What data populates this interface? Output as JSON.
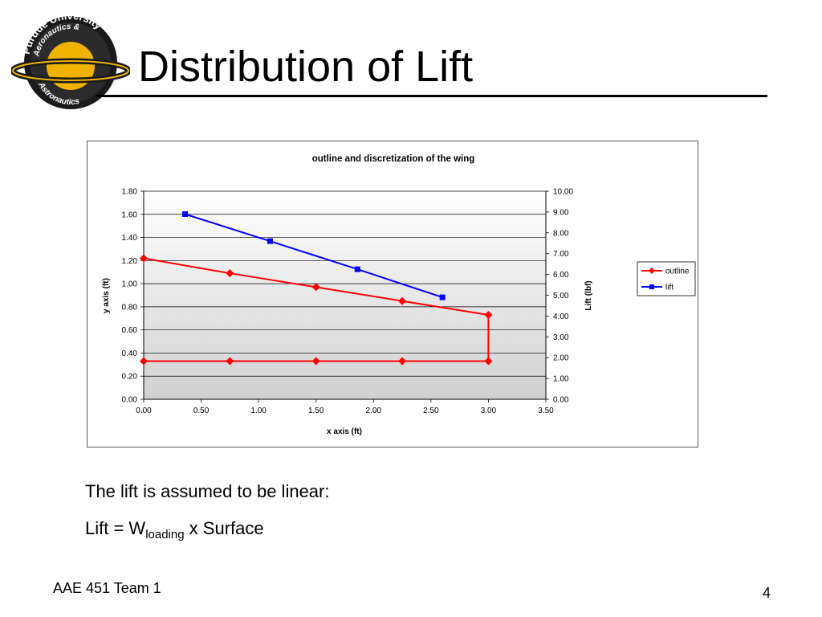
{
  "slide": {
    "title": "Distribution of Lift",
    "logo_text": "Purdue University Aeronautics & Astronautics",
    "body_line1": "The lift is assumed to be linear:",
    "body_line2_prefix": "Lift = W",
    "body_line2_sub": "loading",
    "body_line2_suffix": " x Surface",
    "footer": "AAE 451 Team 1",
    "page_number": "4"
  },
  "colors": {
    "outline": "#ff0000",
    "lift": "#0000ff",
    "logo_gold": "#f0b400",
    "logo_dark": "#1a1a1a"
  },
  "chart_data": {
    "type": "line",
    "title": "outline and discretization of the wing",
    "xlabel": "x axis (ft)",
    "ylabel": "y axis (ft)",
    "y2label": "Lift (lbf)",
    "xlim": [
      0,
      3.5
    ],
    "ylim": [
      0,
      1.8
    ],
    "y2lim": [
      0,
      10
    ],
    "x_ticks": [
      "0.00",
      "0.50",
      "1.00",
      "1.50",
      "2.00",
      "2.50",
      "3.00",
      "3.50"
    ],
    "y_ticks": [
      "0.00",
      "0.20",
      "0.40",
      "0.60",
      "0.80",
      "1.00",
      "1.20",
      "1.40",
      "1.60",
      "1.80"
    ],
    "y2_ticks": [
      "0.00",
      "1.00",
      "2.00",
      "3.00",
      "4.00",
      "5.00",
      "6.00",
      "7.00",
      "8.00",
      "9.00",
      "10.00"
    ],
    "grid": true,
    "legend_position": "right",
    "series": [
      {
        "name": "outline",
        "axis": "left",
        "marker": "diamond",
        "points": [
          [
            0,
            1.22
          ],
          [
            0.75,
            1.09
          ],
          [
            1.5,
            0.97
          ],
          [
            2.25,
            0.85
          ],
          [
            3.0,
            0.73
          ],
          [
            3.0,
            0.33
          ],
          [
            2.25,
            0.33
          ],
          [
            1.5,
            0.33
          ],
          [
            0.75,
            0.33
          ],
          [
            0,
            0.33
          ]
        ]
      },
      {
        "name": "lift",
        "axis": "right",
        "marker": "square",
        "points": [
          [
            0.36,
            8.9
          ],
          [
            1.1,
            7.6
          ],
          [
            1.86,
            6.25
          ],
          [
            2.6,
            4.9
          ]
        ]
      }
    ]
  }
}
